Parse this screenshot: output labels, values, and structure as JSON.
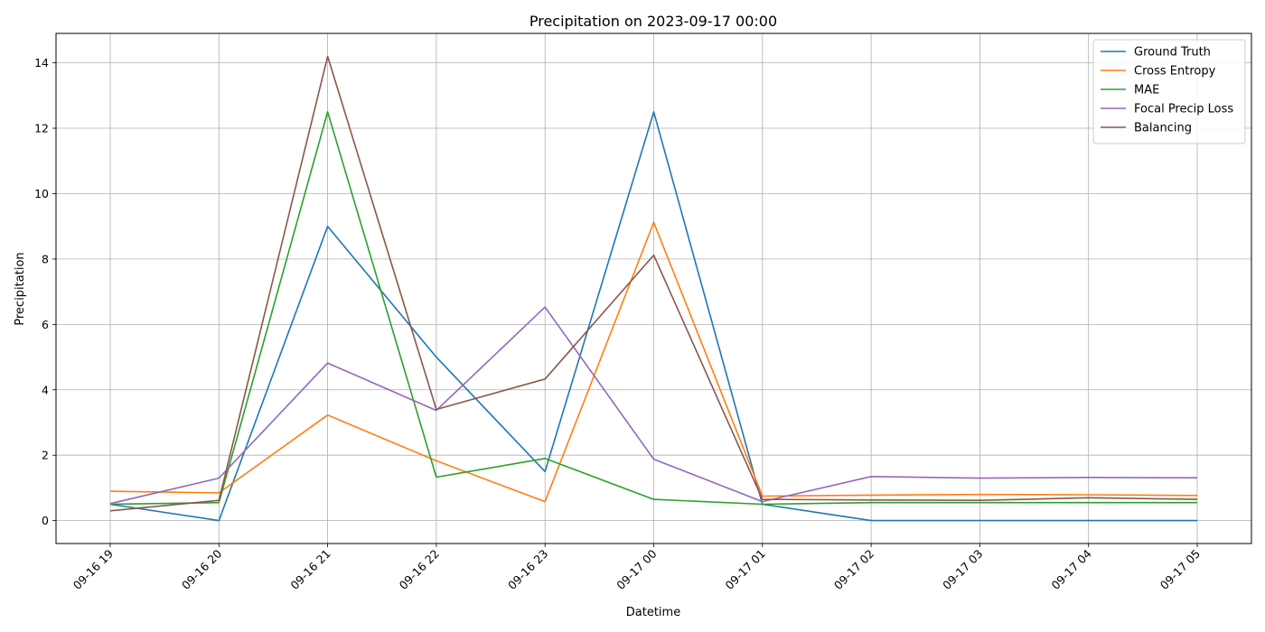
{
  "chart_data": {
    "type": "line",
    "title": "Precipitation on 2023-09-17 00:00",
    "xlabel": "Datetime",
    "ylabel": "Precipitation",
    "x": [
      "09-16 19",
      "09-16 20",
      "09-16 21",
      "09-16 22",
      "09-16 23",
      "09-17 00",
      "09-17 01",
      "09-17 02",
      "09-17 03",
      "09-17 04",
      "09-17 05"
    ],
    "ylim": [
      -0.7,
      14.9
    ],
    "yticks": [
      0,
      2,
      4,
      6,
      8,
      10,
      12,
      14
    ],
    "grid": true,
    "legend_position": "top-right",
    "series": [
      {
        "name": "Ground Truth",
        "color": "#1f77b4",
        "values": [
          0.5,
          0.0,
          9.0,
          5.0,
          1.5,
          12.5,
          0.5,
          0.0,
          0.0,
          0.0,
          0.0
        ]
      },
      {
        "name": "Cross Entropy",
        "color": "#ff7f0e",
        "values": [
          0.9,
          0.85,
          3.23,
          1.83,
          0.58,
          9.12,
          0.75,
          0.78,
          0.8,
          0.79,
          0.77
        ]
      },
      {
        "name": "MAE",
        "color": "#2ca02c",
        "values": [
          0.5,
          0.55,
          12.5,
          1.33,
          1.9,
          0.65,
          0.5,
          0.55,
          0.55,
          0.55,
          0.55
        ]
      },
      {
        "name": "Focal Precip Loss",
        "color": "#9467bd",
        "values": [
          0.52,
          1.3,
          4.82,
          3.37,
          6.53,
          1.88,
          0.58,
          1.35,
          1.3,
          1.32,
          1.31
        ]
      },
      {
        "name": "Balancing",
        "color": "#8c564b",
        "values": [
          0.3,
          0.62,
          14.2,
          3.4,
          4.33,
          8.12,
          0.65,
          0.63,
          0.62,
          0.7,
          0.65
        ]
      }
    ]
  }
}
